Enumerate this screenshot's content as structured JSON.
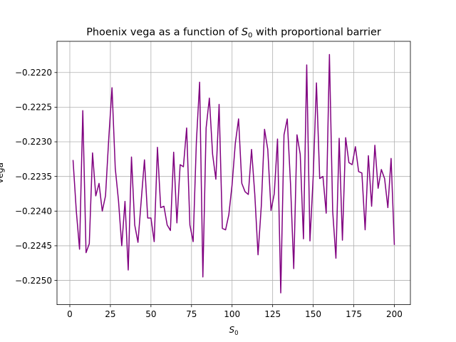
{
  "chart_data": {
    "type": "line",
    "title_main": "Phoenix vega as a function of ",
    "title_var": "S",
    "title_sub": "0",
    "title_rest": " with proportional barrier",
    "xlabel_var": "S",
    "xlabel_sub": "0",
    "ylabel": "vega",
    "xlim": [
      -7.9,
      209.9
    ],
    "ylim": [
      -0.22535,
      -0.22155
    ],
    "x_ticks": [
      0,
      25,
      50,
      75,
      100,
      125,
      150,
      175,
      200
    ],
    "x_tick_labels": [
      "0",
      "25",
      "50",
      "75",
      "100",
      "125",
      "150",
      "175",
      "200"
    ],
    "y_ticks": [
      -0.225,
      -0.2245,
      -0.224,
      -0.2235,
      -0.223,
      -0.2225,
      -0.222
    ],
    "y_tick_labels": [
      "−0.2250",
      "−0.2245",
      "−0.2240",
      "−0.2235",
      "−0.2230",
      "−0.2225",
      "−0.2220"
    ],
    "grid": true,
    "series": [
      {
        "color": "#800080",
        "x": [
          2,
          4,
          6,
          8,
          10,
          12,
          14,
          16,
          18,
          20,
          22,
          24,
          26,
          28,
          30,
          32,
          34,
          36,
          38,
          40,
          42,
          44,
          46,
          48,
          50,
          52,
          54,
          56,
          58,
          60,
          62,
          64,
          66,
          68,
          70,
          72,
          74,
          76,
          78,
          80,
          82,
          84,
          86,
          88,
          90,
          92,
          94,
          96,
          98,
          100,
          102,
          104,
          106,
          108,
          110,
          112,
          114,
          116,
          118,
          120,
          122,
          124,
          126,
          128,
          130,
          132,
          134,
          136,
          138,
          140,
          142,
          144,
          146,
          148,
          150,
          152,
          154,
          156,
          158,
          160,
          162,
          164,
          166,
          168,
          170,
          172,
          174,
          176,
          178,
          180,
          182,
          184,
          186,
          188,
          190,
          192,
          194,
          196,
          198,
          200
        ],
        "y": [
          -0.22327,
          -0.224,
          -0.22455,
          -0.22255,
          -0.2246,
          -0.22447,
          -0.22316,
          -0.22378,
          -0.2236,
          -0.224,
          -0.22378,
          -0.22295,
          -0.22222,
          -0.22338,
          -0.22385,
          -0.2245,
          -0.22386,
          -0.22485,
          -0.22322,
          -0.2242,
          -0.22445,
          -0.22385,
          -0.22326,
          -0.2241,
          -0.2241,
          -0.22444,
          -0.22308,
          -0.22395,
          -0.22393,
          -0.2242,
          -0.22428,
          -0.22315,
          -0.22417,
          -0.22333,
          -0.22336,
          -0.2228,
          -0.2242,
          -0.22444,
          -0.223,
          -0.22214,
          -0.22495,
          -0.2228,
          -0.22237,
          -0.22318,
          -0.22354,
          -0.22246,
          -0.22425,
          -0.22427,
          -0.22405,
          -0.22362,
          -0.22302,
          -0.22267,
          -0.2236,
          -0.22372,
          -0.22376,
          -0.22311,
          -0.22376,
          -0.22463,
          -0.22393,
          -0.22282,
          -0.22311,
          -0.22399,
          -0.22375,
          -0.22296,
          -0.22518,
          -0.2229,
          -0.22267,
          -0.2236,
          -0.22483,
          -0.2229,
          -0.22318,
          -0.2244,
          -0.22189,
          -0.22443,
          -0.2235,
          -0.22215,
          -0.22353,
          -0.2235,
          -0.22403,
          -0.22174,
          -0.224,
          -0.22468,
          -0.22295,
          -0.22442,
          -0.22294,
          -0.2233,
          -0.22333,
          -0.22307,
          -0.22343,
          -0.22345,
          -0.22427,
          -0.2232,
          -0.22393,
          -0.22305,
          -0.22367,
          -0.2234,
          -0.22353,
          -0.22395,
          -0.22324,
          -0.22448
        ]
      }
    ]
  }
}
